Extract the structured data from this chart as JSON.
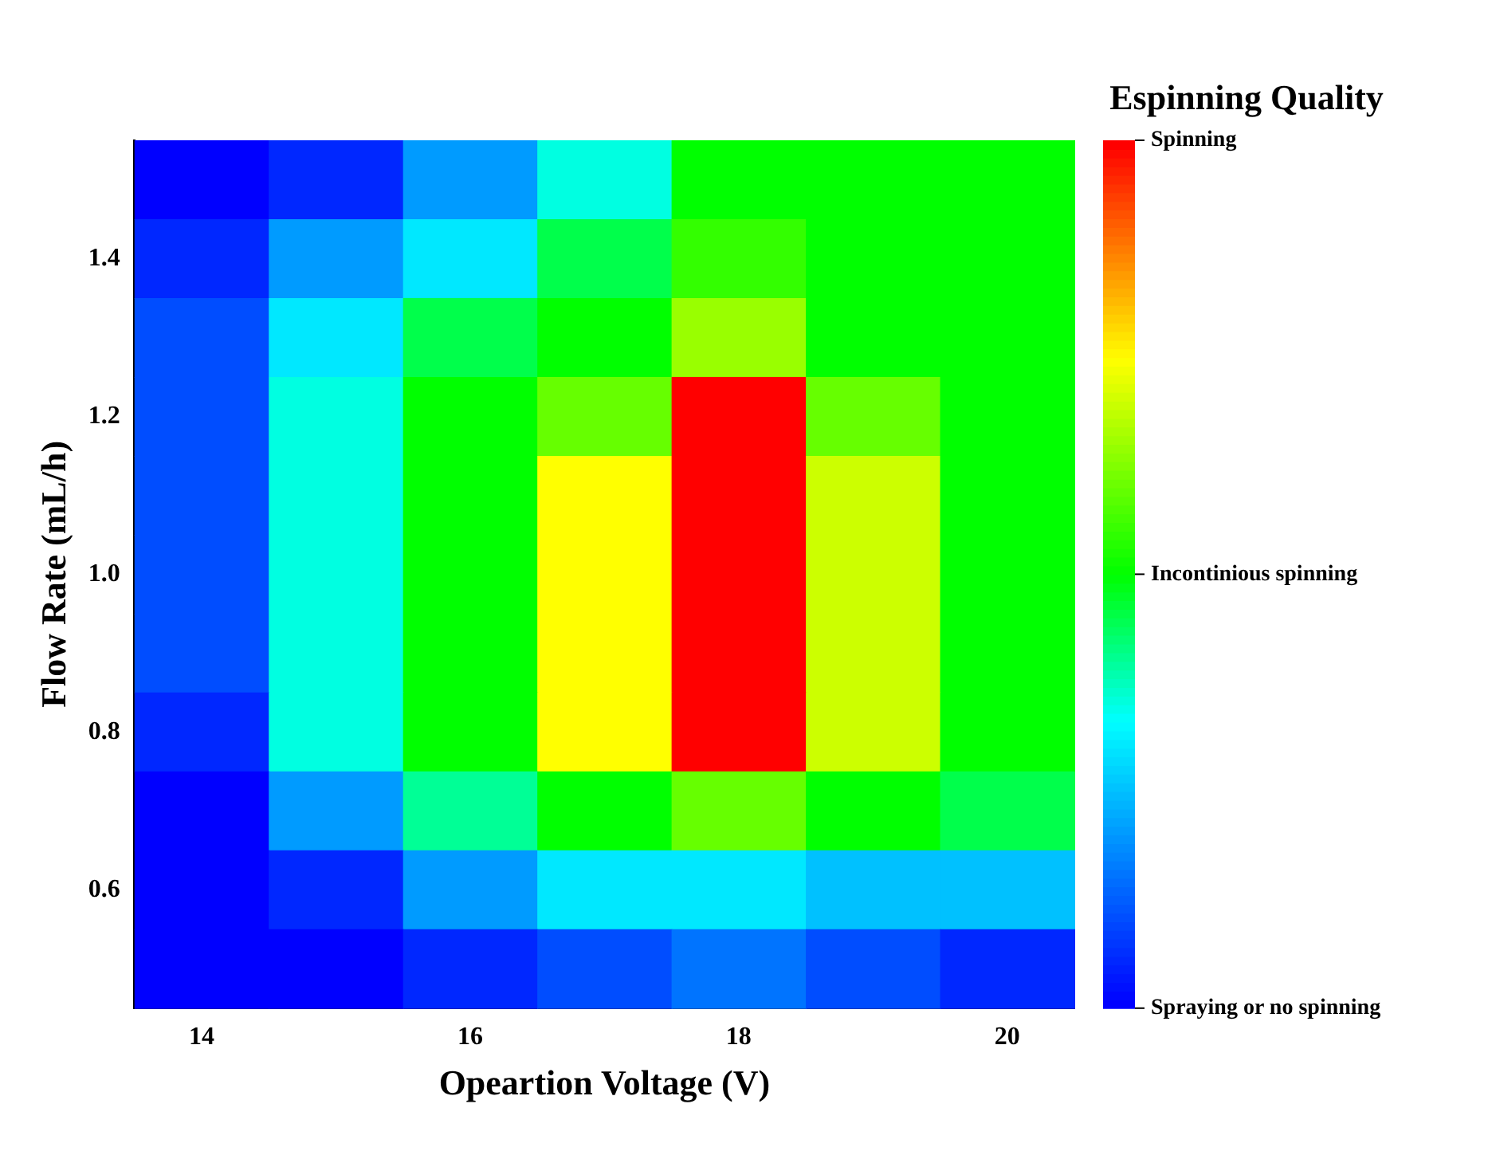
{
  "chart_data": {
    "type": "heatmap",
    "xlabel": "Opeartion Voltage (V)",
    "ylabel": "Flow Rate (mL/h)",
    "clabel": "Espinning Quality",
    "categories": [
      "14",
      null,
      "16",
      null,
      "18",
      null,
      "20"
    ],
    "y_categories": [
      null,
      "1.4",
      null,
      "1.2",
      null,
      "1.0",
      null,
      "0.8",
      null,
      "0.6",
      null
    ],
    "cells": [
      [
        0.0,
        0.1,
        0.4,
        0.7,
        1.0,
        1.0,
        1.0
      ],
      [
        0.1,
        0.4,
        0.6,
        0.9,
        1.1,
        1.0,
        1.0
      ],
      [
        0.2,
        0.6,
        0.9,
        1.0,
        1.3,
        1.0,
        1.0
      ],
      [
        0.2,
        0.7,
        1.0,
        1.2,
        2.0,
        1.2,
        1.0
      ],
      [
        0.2,
        0.7,
        1.0,
        1.5,
        2.0,
        1.4,
        1.0
      ],
      [
        0.2,
        0.7,
        1.0,
        1.5,
        2.0,
        1.4,
        1.0
      ],
      [
        0.2,
        0.7,
        1.0,
        1.5,
        2.0,
        1.4,
        1.0
      ],
      [
        0.1,
        0.7,
        1.0,
        1.5,
        2.0,
        1.4,
        1.0
      ],
      [
        0.0,
        0.4,
        0.8,
        1.0,
        1.2,
        1.0,
        0.9
      ],
      [
        0.0,
        0.1,
        0.4,
        0.6,
        0.6,
        0.5,
        0.5
      ],
      [
        0.0,
        0.0,
        0.1,
        0.2,
        0.3,
        0.2,
        0.1
      ]
    ],
    "clim": [
      0,
      2
    ],
    "cticks": [
      {
        "value": 0,
        "label": "Spraying or no spinning"
      },
      {
        "value": 1,
        "label": "Incontinious spinning"
      },
      {
        "value": 2,
        "label": "Spinning"
      }
    ],
    "grid": false
  }
}
